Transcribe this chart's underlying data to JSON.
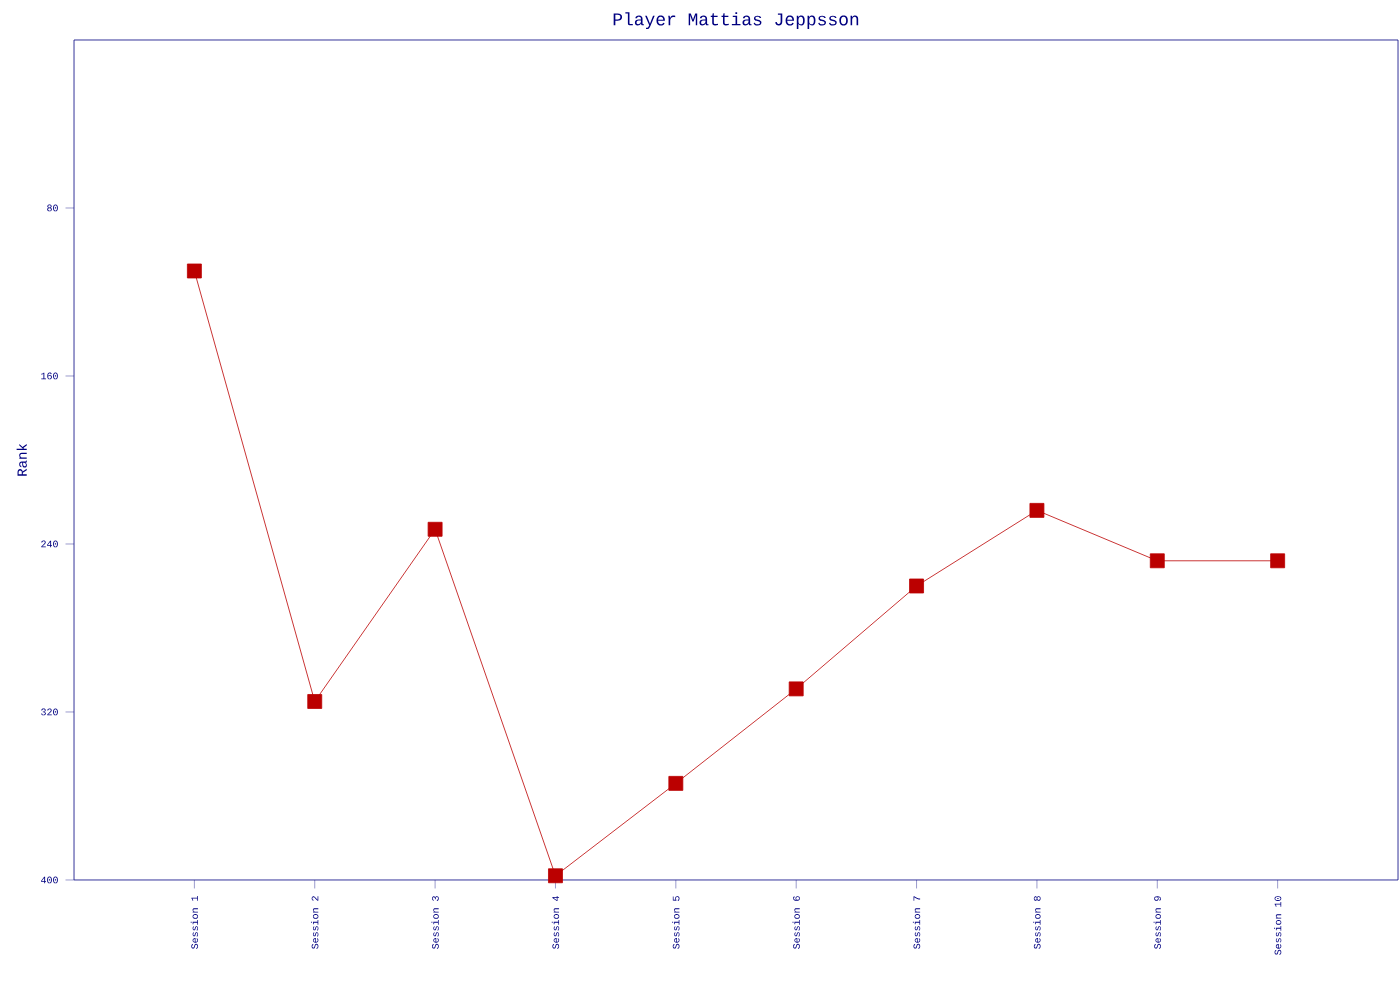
{
  "chart_data": {
    "type": "line",
    "title": "Player Mattias Jeppsson",
    "ylabel": "Rank",
    "categories": [
      "Session 1",
      "Session 2",
      "Session 3",
      "Session 4",
      "Session 5",
      "Session 6",
      "Session 7",
      "Session 8",
      "Session 9",
      "Session 10"
    ],
    "series": [
      {
        "color": "#bb0000",
        "values": [
          110,
          315,
          233,
          398,
          354,
          309,
          260,
          224,
          248,
          248
        ]
      }
    ],
    "ylim": [
      400,
      0
    ],
    "yticks": [
      80,
      160,
      240,
      320,
      400
    ],
    "marker": "square",
    "line_style": "solid",
    "grid": false
  }
}
